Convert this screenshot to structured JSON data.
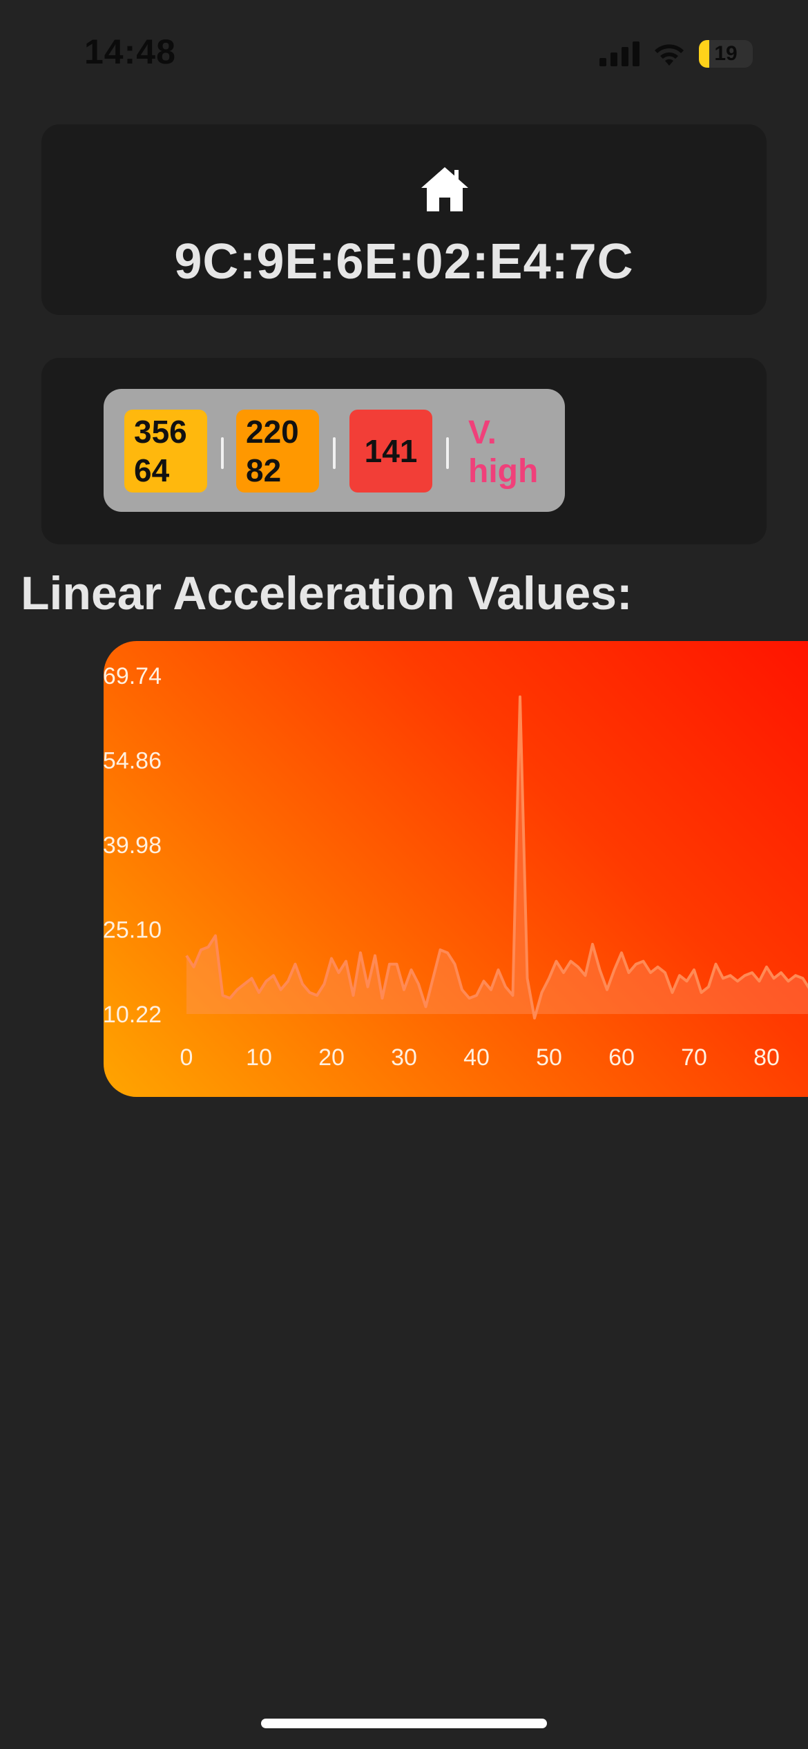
{
  "status_bar": {
    "time": "14:48",
    "battery_level": "19",
    "battery_fraction": 0.19,
    "icons": [
      "cellular-signal-icon",
      "wifi-icon",
      "battery-icon"
    ]
  },
  "device": {
    "icon": "home-icon",
    "address": "9C:9E:6E:02:E4:7C"
  },
  "readings": {
    "badge_a": {
      "line1": "356",
      "line2": "64",
      "color": "#ffb80d"
    },
    "badge_b": {
      "line1": "220",
      "line2": "82",
      "color": "#ff9800"
    },
    "badge_c": {
      "value": "141",
      "color": "#f23e37"
    },
    "level": {
      "line1": "V.",
      "line2": "high",
      "color": "#f0407a"
    }
  },
  "section": {
    "title": "Linear Acceleration Values:"
  },
  "chart_data": {
    "type": "area",
    "y_tick_labels": [
      "69.74",
      "54.86",
      "39.98",
      "25.10",
      "10.22"
    ],
    "y_ticks": [
      69.74,
      54.86,
      39.98,
      25.1,
      10.22
    ],
    "x_tick_labels": [
      "0",
      "10",
      "20",
      "30",
      "40",
      "50",
      "60",
      "70",
      "80"
    ],
    "x_ticks": [
      0,
      10,
      20,
      30,
      40,
      50,
      60,
      70,
      80
    ],
    "xlim": [
      0,
      85
    ],
    "ylim": [
      10.22,
      69.74
    ],
    "grid": false,
    "y": [
      20.5,
      18.5,
      21.5,
      22.0,
      24.0,
      13.5,
      13.0,
      14.5,
      15.5,
      16.5,
      14.0,
      16.0,
      17.0,
      14.5,
      16.0,
      19.0,
      15.5,
      14.0,
      13.5,
      15.5,
      20.0,
      17.5,
      19.5,
      13.5,
      21.0,
      15.0,
      20.5,
      13.0,
      19.0,
      19.0,
      14.5,
      18.0,
      15.5,
      11.5,
      16.5,
      21.5,
      21.0,
      19.0,
      14.5,
      13.0,
      13.5,
      16.0,
      14.5,
      18.0,
      15.0,
      13.5,
      66.0,
      16.5,
      9.5,
      14.0,
      16.5,
      19.5,
      17.5,
      19.5,
      18.5,
      17.0,
      22.5,
      18.0,
      14.5,
      18.0,
      21.0,
      17.5,
      19.0,
      19.5,
      17.5,
      18.5,
      17.5,
      14.0,
      17.0,
      16.0,
      18.0,
      14.0,
      15.0,
      19.0,
      16.5,
      17.0,
      16.0,
      17.0,
      17.5,
      16.0,
      18.5,
      16.5,
      17.5,
      16.0,
      17.0,
      16.5,
      14.5,
      13.5
    ],
    "x_step": 1,
    "line_color": "#ff8a55",
    "fill_color": "#ff9a70"
  }
}
